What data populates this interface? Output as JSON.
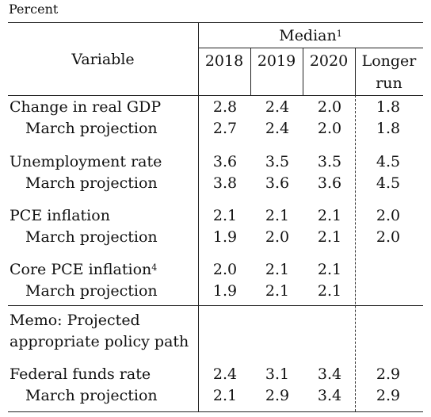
{
  "unit_label": "Percent",
  "header": {
    "variable": "Variable",
    "median": "Median",
    "median_note": "1",
    "years": [
      "2018",
      "2019",
      "2020"
    ],
    "longer_run_line1": "Longer",
    "longer_run_line2": "run"
  },
  "rows": [
    {
      "label": "Change in real GDP",
      "note": "",
      "values": [
        "2.8",
        "2.4",
        "2.0",
        "1.8"
      ]
    },
    {
      "label": "March projection",
      "note": "",
      "values": [
        "2.7",
        "2.4",
        "2.0",
        "1.8"
      ]
    },
    {
      "label": "Unemployment rate",
      "note": "",
      "values": [
        "3.6",
        "3.5",
        "3.5",
        "4.5"
      ]
    },
    {
      "label": "March projection",
      "note": "",
      "values": [
        "3.8",
        "3.6",
        "3.6",
        "4.5"
      ]
    },
    {
      "label": "PCE inflation",
      "note": "",
      "values": [
        "2.1",
        "2.1",
        "2.1",
        "2.0"
      ]
    },
    {
      "label": "March projection",
      "note": "",
      "values": [
        "1.9",
        "2.0",
        "2.1",
        "2.0"
      ]
    },
    {
      "label": "Core PCE inflation",
      "note": "4",
      "values": [
        "2.0",
        "2.1",
        "2.1",
        ""
      ]
    },
    {
      "label": "March projection",
      "note": "",
      "values": [
        "1.9",
        "2.1",
        "2.1",
        ""
      ]
    }
  ],
  "memo": {
    "line1": "Memo: Projected",
    "line2": "appropriate policy path"
  },
  "memo_rows": [
    {
      "label": "Federal funds rate",
      "values": [
        "2.4",
        "3.1",
        "3.4",
        "2.9"
      ]
    },
    {
      "label": "March projection",
      "values": [
        "2.1",
        "2.9",
        "3.4",
        "2.9"
      ]
    }
  ]
}
